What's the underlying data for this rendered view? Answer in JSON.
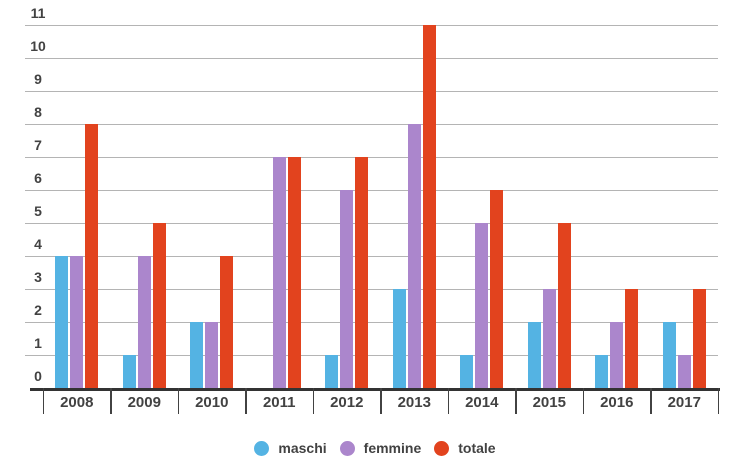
{
  "chart_data": {
    "type": "bar",
    "title": "",
    "xlabel": "",
    "ylabel": "",
    "categories": [
      "2008",
      "2009",
      "2010",
      "2011",
      "2012",
      "2013",
      "2014",
      "2015",
      "2016",
      "2017"
    ],
    "series": [
      {
        "name": "maschi",
        "color": "#54b3e3",
        "values": [
          4,
          1,
          2,
          0,
          1,
          3,
          1,
          2,
          1,
          2
        ]
      },
      {
        "name": "femmine",
        "color": "#ab86cc",
        "values": [
          4,
          4,
          2,
          7,
          6,
          8,
          5,
          3,
          2,
          1
        ]
      },
      {
        "name": "totale",
        "color": "#e2431e",
        "values": [
          8,
          5,
          4,
          7,
          7,
          11,
          6,
          5,
          3,
          3
        ]
      }
    ],
    "ylim": [
      0,
      11
    ],
    "yticks": [
      "0",
      "1",
      "2",
      "3",
      "4",
      "5",
      "6",
      "7",
      "8",
      "9",
      "10",
      "11"
    ],
    "grid": true,
    "legend_position": "bottom"
  },
  "colors": {
    "axis": "#333333",
    "gridline": "#b4b4b4",
    "text": "#424242",
    "background": "#ffffff"
  }
}
